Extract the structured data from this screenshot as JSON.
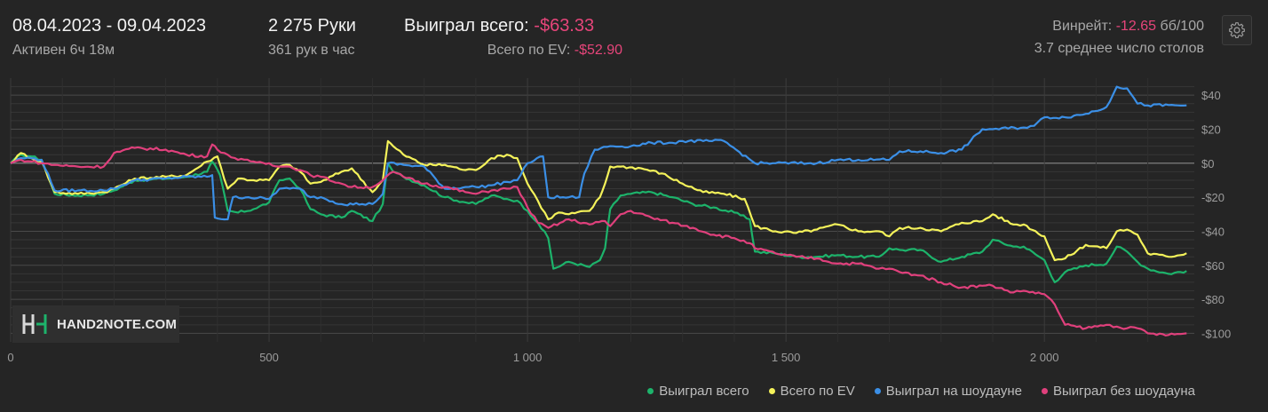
{
  "header": {
    "date_range": "08.04.2023 - 09.04.2023",
    "active": "Активен 6ч 18м",
    "hands": "2 275 Руки",
    "hands_per_hour": "361 рук в час",
    "won_label": "Выиграл всего: ",
    "won_value": "-$63.33",
    "ev_label": "Всего по EV: ",
    "ev_value": "-$52.90",
    "winrate_label": "Винрейт: ",
    "winrate_value": "-12.65",
    "winrate_unit": " бб/100",
    "avg_tables": "3.7 среднее число столов"
  },
  "settings": {
    "icon": "gear-icon"
  },
  "logo": {
    "text": "HAND2NOTE.COM"
  },
  "colors": {
    "background": "#252525",
    "accent_negative": "#e6457a",
    "won": "#1db36b",
    "ev": "#f4f25a",
    "showdown": "#3b8fe6",
    "non_showdown": "#e0407c"
  },
  "chart_data": {
    "type": "line",
    "xlim": [
      0,
      2290
    ],
    "ylim": [
      -105,
      50
    ],
    "x_ticks": [
      0,
      500,
      1000,
      1500,
      2000
    ],
    "x_tick_labels": [
      "0",
      "500",
      "1 000",
      "1 500",
      "2 000"
    ],
    "y_ticks": [
      40,
      20,
      0,
      -20,
      -40,
      -60,
      -80,
      -100
    ],
    "y_tick_labels": [
      "$40",
      "$20",
      "$0",
      "-$20",
      "-$40",
      "-$60",
      "-$80",
      "-$100"
    ],
    "grid": true,
    "legend_position": "bottom-right",
    "series": [
      {
        "name": "Выиграл всего",
        "color": "#1db36b",
        "points": [
          [
            0,
            0
          ],
          [
            20,
            5
          ],
          [
            40,
            4
          ],
          [
            60,
            2
          ],
          [
            85,
            -18
          ],
          [
            130,
            -19
          ],
          [
            180,
            -18
          ],
          [
            200,
            -16
          ],
          [
            240,
            -10
          ],
          [
            300,
            -9
          ],
          [
            340,
            -8
          ],
          [
            380,
            -5
          ],
          [
            390,
            1
          ],
          [
            405,
            -7
          ],
          [
            420,
            -28
          ],
          [
            440,
            -29
          ],
          [
            470,
            -27
          ],
          [
            500,
            -23
          ],
          [
            520,
            -10
          ],
          [
            540,
            -9
          ],
          [
            560,
            -15
          ],
          [
            580,
            -27
          ],
          [
            600,
            -30
          ],
          [
            640,
            -32
          ],
          [
            660,
            -28
          ],
          [
            700,
            -34
          ],
          [
            720,
            -24
          ],
          [
            730,
            0
          ],
          [
            740,
            -5
          ],
          [
            760,
            -8
          ],
          [
            800,
            -13
          ],
          [
            840,
            -20
          ],
          [
            880,
            -23
          ],
          [
            900,
            -24
          ],
          [
            930,
            -19
          ],
          [
            960,
            -21
          ],
          [
            980,
            -22
          ],
          [
            1000,
            -28
          ],
          [
            1020,
            -35
          ],
          [
            1040,
            -44
          ],
          [
            1050,
            -62
          ],
          [
            1080,
            -58
          ],
          [
            1120,
            -61
          ],
          [
            1140,
            -57
          ],
          [
            1150,
            -50
          ],
          [
            1160,
            -27
          ],
          [
            1180,
            -19
          ],
          [
            1200,
            -18
          ],
          [
            1240,
            -17
          ],
          [
            1280,
            -20
          ],
          [
            1320,
            -24
          ],
          [
            1360,
            -26
          ],
          [
            1400,
            -29
          ],
          [
            1430,
            -33
          ],
          [
            1440,
            -52
          ],
          [
            1480,
            -53
          ],
          [
            1520,
            -55
          ],
          [
            1560,
            -55
          ],
          [
            1600,
            -54
          ],
          [
            1640,
            -55
          ],
          [
            1680,
            -55
          ],
          [
            1700,
            -50
          ],
          [
            1720,
            -51
          ],
          [
            1760,
            -51
          ],
          [
            1800,
            -58
          ],
          [
            1840,
            -55
          ],
          [
            1880,
            -52
          ],
          [
            1900,
            -45
          ],
          [
            1940,
            -49
          ],
          [
            1960,
            -49
          ],
          [
            2000,
            -57
          ],
          [
            2020,
            -70
          ],
          [
            2040,
            -64
          ],
          [
            2080,
            -60
          ],
          [
            2120,
            -59
          ],
          [
            2140,
            -49
          ],
          [
            2160,
            -52
          ],
          [
            2180,
            -58
          ],
          [
            2200,
            -62
          ],
          [
            2240,
            -65
          ],
          [
            2275,
            -63.33
          ]
        ]
      },
      {
        "name": "Всего по EV",
        "color": "#f4f25a",
        "points": [
          [
            0,
            0
          ],
          [
            20,
            6
          ],
          [
            40,
            3
          ],
          [
            60,
            1
          ],
          [
            85,
            -17
          ],
          [
            130,
            -18
          ],
          [
            180,
            -17
          ],
          [
            200,
            -15
          ],
          [
            240,
            -9
          ],
          [
            300,
            -8
          ],
          [
            340,
            -7
          ],
          [
            380,
            1
          ],
          [
            400,
            4
          ],
          [
            420,
            -15
          ],
          [
            440,
            -9
          ],
          [
            470,
            -10
          ],
          [
            500,
            -10
          ],
          [
            520,
            -2
          ],
          [
            540,
            -1
          ],
          [
            560,
            -5
          ],
          [
            580,
            -12
          ],
          [
            600,
            -11
          ],
          [
            640,
            -5
          ],
          [
            660,
            -3
          ],
          [
            700,
            -17
          ],
          [
            720,
            -10
          ],
          [
            730,
            13
          ],
          [
            740,
            10
          ],
          [
            760,
            5
          ],
          [
            800,
            -1
          ],
          [
            840,
            -1
          ],
          [
            880,
            -4
          ],
          [
            900,
            -4
          ],
          [
            930,
            3
          ],
          [
            960,
            5
          ],
          [
            980,
            3
          ],
          [
            1000,
            -12
          ],
          [
            1020,
            -22
          ],
          [
            1040,
            -33
          ],
          [
            1060,
            -29
          ],
          [
            1080,
            -30
          ],
          [
            1120,
            -28
          ],
          [
            1140,
            -20
          ],
          [
            1150,
            -12
          ],
          [
            1160,
            -2
          ],
          [
            1180,
            -2
          ],
          [
            1220,
            -3
          ],
          [
            1260,
            -6
          ],
          [
            1300,
            -12
          ],
          [
            1340,
            -17
          ],
          [
            1380,
            -18
          ],
          [
            1420,
            -21
          ],
          [
            1440,
            -37
          ],
          [
            1480,
            -40
          ],
          [
            1520,
            -41
          ],
          [
            1560,
            -39
          ],
          [
            1600,
            -36
          ],
          [
            1640,
            -40
          ],
          [
            1680,
            -40
          ],
          [
            1700,
            -43
          ],
          [
            1720,
            -38
          ],
          [
            1760,
            -38
          ],
          [
            1800,
            -40
          ],
          [
            1840,
            -35
          ],
          [
            1880,
            -34
          ],
          [
            1900,
            -30
          ],
          [
            1940,
            -36
          ],
          [
            1960,
            -36
          ],
          [
            2000,
            -43
          ],
          [
            2020,
            -57
          ],
          [
            2040,
            -56
          ],
          [
            2080,
            -48
          ],
          [
            2120,
            -50
          ],
          [
            2140,
            -40
          ],
          [
            2160,
            -39
          ],
          [
            2180,
            -42
          ],
          [
            2200,
            -53
          ],
          [
            2240,
            -55
          ],
          [
            2275,
            -52.9
          ]
        ]
      },
      {
        "name": "Выиграл на шоудауне",
        "color": "#3b8fe6",
        "points": [
          [
            0,
            0
          ],
          [
            20,
            3
          ],
          [
            40,
            3
          ],
          [
            60,
            2
          ],
          [
            85,
            -16
          ],
          [
            130,
            -16
          ],
          [
            180,
            -16
          ],
          [
            200,
            -15
          ],
          [
            240,
            -10
          ],
          [
            300,
            -9
          ],
          [
            340,
            -8
          ],
          [
            380,
            -8
          ],
          [
            390,
            -7
          ],
          [
            395,
            -32
          ],
          [
            420,
            -33
          ],
          [
            430,
            -20
          ],
          [
            460,
            -20
          ],
          [
            500,
            -21
          ],
          [
            520,
            -15
          ],
          [
            540,
            -15
          ],
          [
            560,
            -15
          ],
          [
            580,
            -20
          ],
          [
            600,
            -20
          ],
          [
            640,
            -24
          ],
          [
            680,
            -24
          ],
          [
            700,
            -24
          ],
          [
            720,
            -18
          ],
          [
            730,
            0
          ],
          [
            760,
            -1
          ],
          [
            800,
            -2
          ],
          [
            840,
            -15
          ],
          [
            880,
            -14
          ],
          [
            900,
            -14
          ],
          [
            930,
            -13
          ],
          [
            960,
            -11
          ],
          [
            980,
            -10
          ],
          [
            1000,
            0
          ],
          [
            1030,
            4
          ],
          [
            1040,
            -20
          ],
          [
            1080,
            -20
          ],
          [
            1100,
            -20
          ],
          [
            1110,
            -6
          ],
          [
            1130,
            8
          ],
          [
            1160,
            10
          ],
          [
            1200,
            10
          ],
          [
            1240,
            12
          ],
          [
            1280,
            12
          ],
          [
            1300,
            13
          ],
          [
            1340,
            13
          ],
          [
            1380,
            13
          ],
          [
            1440,
            0
          ],
          [
            1480,
            0
          ],
          [
            1560,
            0
          ],
          [
            1600,
            2
          ],
          [
            1640,
            2
          ],
          [
            1700,
            2
          ],
          [
            1720,
            7
          ],
          [
            1760,
            7
          ],
          [
            1800,
            6
          ],
          [
            1840,
            8
          ],
          [
            1880,
            20
          ],
          [
            1900,
            20
          ],
          [
            1960,
            21
          ],
          [
            1980,
            22
          ],
          [
            2000,
            27
          ],
          [
            2040,
            27
          ],
          [
            2080,
            29
          ],
          [
            2120,
            33
          ],
          [
            2140,
            45
          ],
          [
            2160,
            44
          ],
          [
            2180,
            35
          ],
          [
            2200,
            34
          ],
          [
            2275,
            34
          ]
        ]
      },
      {
        "name": "Выиграл без шоудауна",
        "color": "#e0407c",
        "points": [
          [
            0,
            0
          ],
          [
            20,
            2
          ],
          [
            40,
            1
          ],
          [
            60,
            0
          ],
          [
            85,
            -1
          ],
          [
            130,
            -2
          ],
          [
            180,
            -2
          ],
          [
            200,
            6
          ],
          [
            240,
            9
          ],
          [
            300,
            8
          ],
          [
            340,
            5
          ],
          [
            380,
            4
          ],
          [
            390,
            11
          ],
          [
            400,
            8
          ],
          [
            420,
            5
          ],
          [
            440,
            2
          ],
          [
            470,
            1
          ],
          [
            500,
            0
          ],
          [
            520,
            -2
          ],
          [
            540,
            -2
          ],
          [
            560,
            -4
          ],
          [
            580,
            -7
          ],
          [
            600,
            -8
          ],
          [
            640,
            -12
          ],
          [
            660,
            -14
          ],
          [
            700,
            -14
          ],
          [
            720,
            -10
          ],
          [
            740,
            -5
          ],
          [
            760,
            -8
          ],
          [
            800,
            -12
          ],
          [
            840,
            -14
          ],
          [
            880,
            -17
          ],
          [
            900,
            -18
          ],
          [
            930,
            -16
          ],
          [
            960,
            -15
          ],
          [
            980,
            -14
          ],
          [
            1000,
            -26
          ],
          [
            1020,
            -35
          ],
          [
            1040,
            -38
          ],
          [
            1080,
            -33
          ],
          [
            1120,
            -36
          ],
          [
            1150,
            -34
          ],
          [
            1160,
            -37
          ],
          [
            1180,
            -30
          ],
          [
            1200,
            -28
          ],
          [
            1240,
            -32
          ],
          [
            1280,
            -35
          ],
          [
            1320,
            -38
          ],
          [
            1360,
            -42
          ],
          [
            1400,
            -44
          ],
          [
            1430,
            -47
          ],
          [
            1440,
            -50
          ],
          [
            1480,
            -53
          ],
          [
            1520,
            -55
          ],
          [
            1560,
            -56
          ],
          [
            1600,
            -59
          ],
          [
            1640,
            -59
          ],
          [
            1680,
            -62
          ],
          [
            1700,
            -62
          ],
          [
            1720,
            -64
          ],
          [
            1760,
            -66
          ],
          [
            1800,
            -70
          ],
          [
            1840,
            -73
          ],
          [
            1880,
            -72
          ],
          [
            1900,
            -72
          ],
          [
            1940,
            -76
          ],
          [
            1960,
            -75
          ],
          [
            2000,
            -77
          ],
          [
            2020,
            -83
          ],
          [
            2040,
            -95
          ],
          [
            2080,
            -97
          ],
          [
            2120,
            -95
          ],
          [
            2140,
            -96
          ],
          [
            2160,
            -97
          ],
          [
            2180,
            -97
          ],
          [
            2200,
            -100
          ],
          [
            2240,
            -101
          ],
          [
            2275,
            -100
          ]
        ]
      }
    ]
  }
}
